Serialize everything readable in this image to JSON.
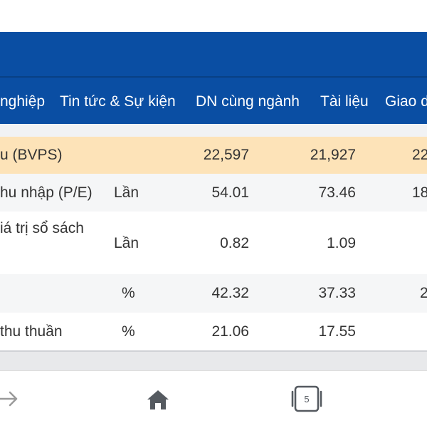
{
  "tabs": [
    "nghiệp",
    "Tin tức & Sự kiện",
    "DN cùng ngành",
    "Tài liệu",
    "Giao d"
  ],
  "rows": [
    {
      "label": "u (BVPS)",
      "unit": "",
      "v1": "22,597",
      "v2": "21,927",
      "v3": "22"
    },
    {
      "label": "hu nhập (P/E)",
      "unit": "Lần",
      "v1": "54.01",
      "v2": "73.46",
      "v3": "18"
    },
    {
      "label": "iá trị sổ sách",
      "unit": "Lần",
      "v1": "0.82",
      "v2": "1.09",
      "v3": ""
    },
    {
      "label": "",
      "unit": "%",
      "v1": "42.32",
      "v2": "37.33",
      "v3": "2"
    },
    {
      "label": "thu thuần",
      "unit": "%",
      "v1": "21.06",
      "v2": "17.55",
      "v3": ""
    }
  ],
  "nav": {
    "forward_icon": "arrow-right-icon",
    "home_icon": "home-icon",
    "tabs_icon": "tabs-icon",
    "tabs_count": "5"
  },
  "colors": {
    "header_blue": "#0a4ea3",
    "highlight_row": "#fde3b8",
    "alt_row": "#f5f6f7"
  }
}
